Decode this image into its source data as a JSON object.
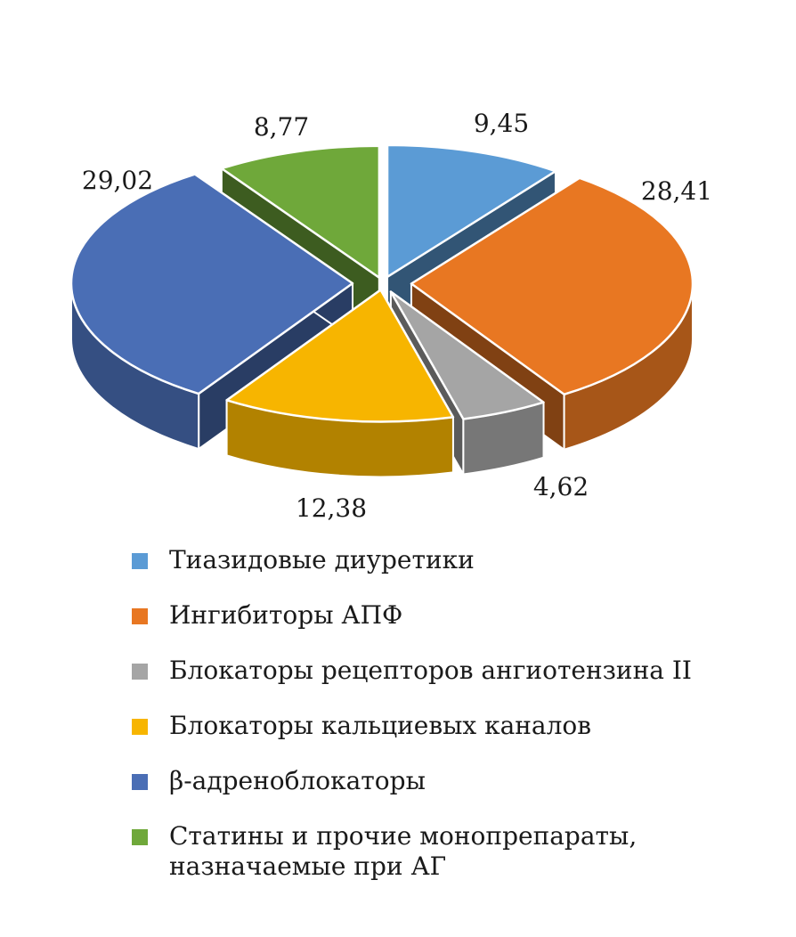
{
  "chart_data": {
    "type": "pie",
    "variant": "3d-exploded",
    "categories": [
      "Тиазидовые диуретики",
      "Ингибиторы АПФ",
      "Блокаторы рецепторов ангиотензина II",
      "Блокаторы кальциевых каналов",
      "β-адреноблокаторы",
      "Статины и прочие монопрепараты, назначаемые при АГ"
    ],
    "values": [
      9.45,
      28.41,
      4.62,
      12.38,
      29.02,
      8.77
    ],
    "value_labels": [
      "9,45",
      "28,41",
      "4,62",
      "12,38",
      "29,02",
      "8,77"
    ],
    "colors": [
      "#5b9bd5",
      "#e87722",
      "#a5a5a5",
      "#f7b500",
      "#4a6eb5",
      "#6fa83a"
    ],
    "legend": "bottom",
    "title": "",
    "xlabel": "",
    "ylabel": ""
  },
  "legend_items": [
    {
      "label": "Тиазидовые диуретики",
      "color": "#5b9bd5"
    },
    {
      "label": "Ингибиторы АПФ",
      "color": "#e87722"
    },
    {
      "label": "Блокаторы рецепторов ангиотензина II",
      "color": "#a5a5a5"
    },
    {
      "label": "Блокаторы кальциевых каналов",
      "color": "#f7b500"
    },
    {
      "label": "β-адреноблокаторы",
      "color": "#4a6eb5"
    },
    {
      "label": "Статины и прочие монопрепараты,\nназначаемые при АГ",
      "color": "#6fa83a"
    }
  ]
}
